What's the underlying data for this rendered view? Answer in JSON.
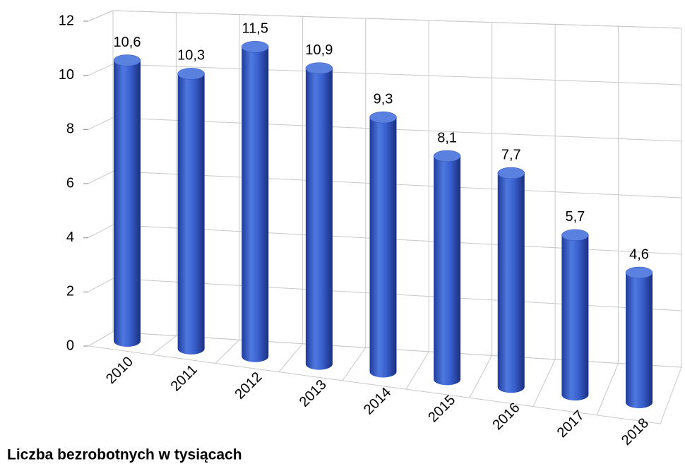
{
  "chart_data": {
    "type": "bar",
    "title": "Liczba bezrobotnych w tysiącach",
    "categories": [
      "2010",
      "2011",
      "2012",
      "2013",
      "2014",
      "2015",
      "2016",
      "2017",
      "2018"
    ],
    "values": [
      10.6,
      10.3,
      11.5,
      10.9,
      9.3,
      8.1,
      7.7,
      5.7,
      4.6
    ],
    "value_labels": [
      "10,6",
      "10,3",
      "11,5",
      "10,9",
      "9,3",
      "8,1",
      "7,7",
      "5,7",
      "4,6"
    ],
    "color": "#3a5fcd",
    "ylim": [
      0,
      12
    ],
    "yticks": [
      0,
      2,
      4,
      6,
      8,
      10,
      12
    ],
    "grid": true
  }
}
